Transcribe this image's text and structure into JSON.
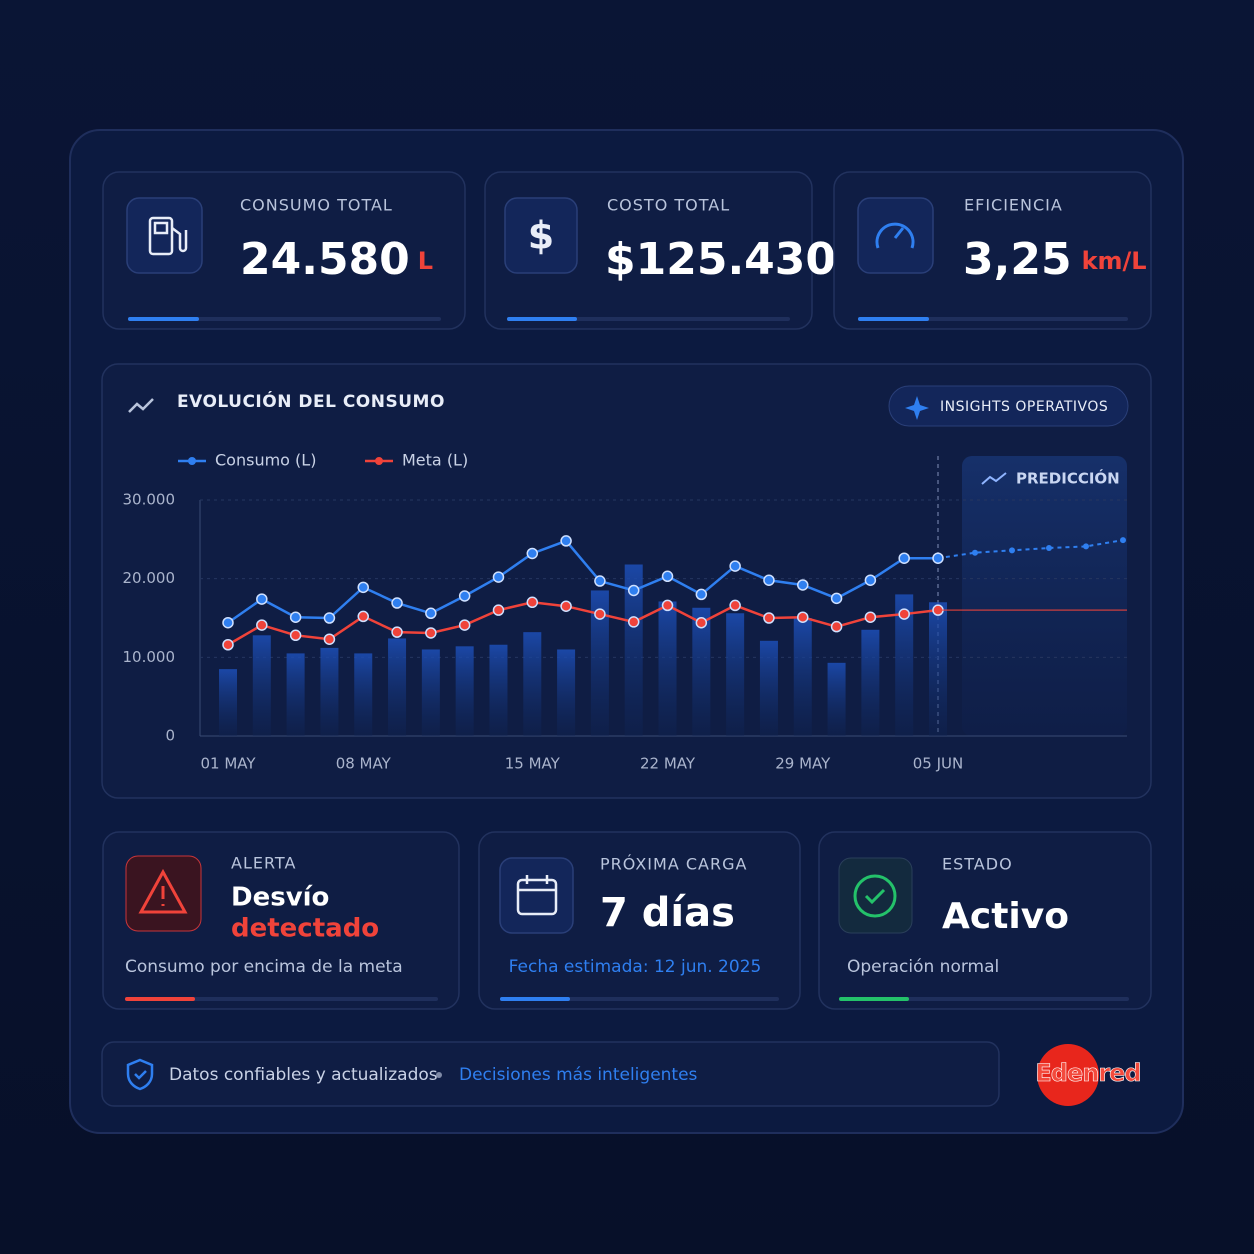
{
  "kpis": [
    {
      "label": "CONSUMO TOTAL",
      "value": "24.580",
      "unit": "L"
    },
    {
      "label": "COSTO TOTAL",
      "value": "$125.430"
    },
    {
      "label": "EFICIENCIA",
      "value": "3,25",
      "unit": "km/L"
    }
  ],
  "chart_data": {
    "type": "line",
    "title": "EVOLUCIÓN DEL CONSUMO",
    "button": "INSIGHTS OPERATIVOS",
    "categories": [
      "01 MAY",
      null,
      null,
      null,
      "08 MAY",
      null,
      null,
      null,
      null,
      "15 MAY",
      null,
      null,
      null,
      "22 MAY",
      null,
      null,
      null,
      "29 MAY",
      null,
      null,
      null,
      "05 JUN"
    ],
    "series": [
      {
        "name": "Consumo (L)",
        "color": "#2f7ff0",
        "values": [
          14400,
          17400,
          15100,
          15000,
          18900,
          16900,
          15600,
          17800,
          20200,
          23200,
          24800,
          19700,
          18500,
          20300,
          18000,
          21600,
          19800,
          19200,
          17500,
          19800,
          22600,
          22600
        ]
      },
      {
        "name": "Meta (L)",
        "color": "#f0433a",
        "values": [
          11600,
          14100,
          12800,
          12300,
          15200,
          13200,
          13100,
          14100,
          16000,
          17000,
          16500,
          15500,
          14500,
          16600,
          14400,
          16600,
          15000,
          15100,
          13900,
          15100,
          15500,
          16000
        ]
      }
    ],
    "bars": [
      8500,
      12800,
      10500,
      11200,
      10500,
      12400,
      11000,
      11400,
      11600,
      13200,
      11000,
      18500,
      21800,
      17100,
      16300,
      15600,
      12100,
      15000,
      9300,
      13500,
      18000,
      17000
    ],
    "prediction": {
      "label": "PREDICCIÓN",
      "values": [
        23300,
        23600,
        23900,
        24100,
        24900
      ]
    },
    "ylim": [
      0,
      30000
    ],
    "yticks": [
      0,
      {
        "value": 10000,
        "label": "10.000"
      },
      {
        "value": 20000,
        "label": "20.000"
      },
      {
        "value": 30000,
        "label": "30.000"
      }
    ],
    "grid": true
  },
  "alerts": [
    {
      "label": "ALERTA",
      "title": "Desvío",
      "title2": "detectado",
      "note": "Consumo por encima de la meta"
    },
    {
      "label": "PRÓXIMA CARGA",
      "title": "7 días",
      "note": "Fecha estimada: 12 jun. 2025"
    },
    {
      "label": "ESTADO",
      "title": "Activo",
      "note": "Operación normal"
    }
  ],
  "footer": {
    "left": "Datos confiables y actualizados",
    "right": "Decisiones más inteligentes",
    "brand": "Edenred"
  }
}
